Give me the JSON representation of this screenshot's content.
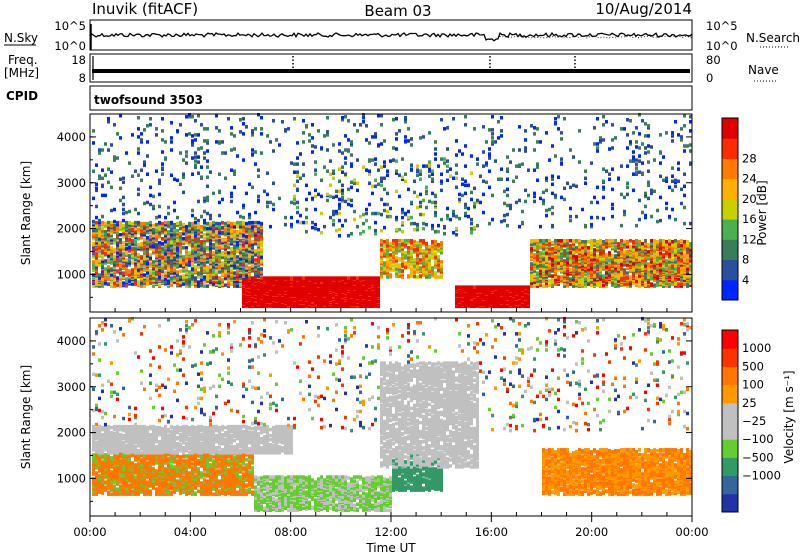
{
  "header": {
    "station": "Inuvik (fitACF)",
    "beam": "Beam 03",
    "date": "10/Aug/2014"
  },
  "strip_panels": {
    "nsky": {
      "left_label": "N.Sky",
      "ticks": [
        "10^5",
        "10^0"
      ],
      "right_label": "N.Search",
      "right_ticks": [
        "10^5",
        "10^0"
      ]
    },
    "freq": {
      "left_label_1": "Freq.",
      "left_label_2": "[MHz]",
      "ticks": [
        "18",
        "8"
      ],
      "right_label": "Nave",
      "right_ticks": [
        "80",
        "0"
      ]
    },
    "cpid": {
      "label": "CPID",
      "program": "twofsound 3503"
    }
  },
  "colors": {
    "power_scale": [
      "#0026ff",
      "#2b4f9e",
      "#3a7d5a",
      "#4caf50",
      "#c8d000",
      "#ffb000",
      "#ff7a00",
      "#ff2a00",
      "#e00000"
    ],
    "velocity_scale": [
      "#ff0000",
      "#ff3300",
      "#ff7700",
      "#ff9900",
      "#c0c0c0",
      "#c0c0c0",
      "#66cc33",
      "#339966",
      "#336699",
      "#2233aa"
    ]
  },
  "chart_data": [
    {
      "type": "heatmap",
      "name": "power",
      "ylabel": "Slant Range [km]",
      "ylim": [
        180,
        4500
      ],
      "yticks": [
        "1000",
        "2000",
        "3000",
        "4000"
      ],
      "colorbar_label": "Power [dB]",
      "colorbar_range": [
        0,
        32
      ],
      "colorbar_ticks": [
        "4",
        "8",
        "12",
        "16",
        "20",
        "24",
        "28"
      ]
    },
    {
      "type": "heatmap",
      "name": "velocity",
      "ylabel": "Slant Range [km]",
      "ylim": [
        180,
        4500
      ],
      "yticks": [
        "1000",
        "2000",
        "3000",
        "4000"
      ],
      "colorbar_label": "Velocity [m s⁻¹]",
      "colorbar_ticks": [
        "1000",
        "500",
        "100",
        "25",
        "−25",
        "−100",
        "−500",
        "−1000"
      ]
    }
  ],
  "x_axis": {
    "label": "Time UT",
    "ticks": [
      "00:00",
      "04:00",
      "08:00",
      "12:00",
      "16:00",
      "20:00",
      "00:00"
    ],
    "range_hours": [
      0,
      24
    ]
  }
}
